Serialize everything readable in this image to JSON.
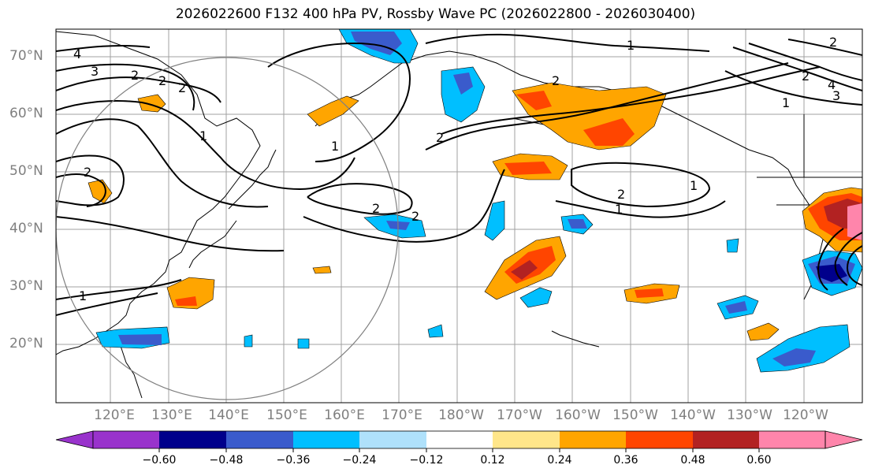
{
  "title": "2026022600 F132 400 hPa PV, Rossby Wave PC (2026022800 - 2026030400)",
  "lat_labels": [
    "70°N",
    "60°N",
    "50°N",
    "40°N",
    "30°N",
    "20°N"
  ],
  "lon_labels": [
    "120°E",
    "130°E",
    "140°E",
    "150°E",
    "160°E",
    "170°E",
    "180°W",
    "170°W",
    "160°W",
    "150°W",
    "140°W",
    "130°W",
    "120°W"
  ],
  "colorbar": {
    "ticks": [
      "−0.60",
      "−0.48",
      "−0.36",
      "−0.24",
      "−0.12",
      "0.12",
      "0.24",
      "0.36",
      "0.48",
      "0.60"
    ],
    "colors": [
      "#9933cc",
      "#00008b",
      "#3a5bcc",
      "#00bfff",
      "#afe1fb",
      "#ffffff",
      "#ffe68a",
      "#ffa500",
      "#ff4500",
      "#b22222",
      "#ff85ab"
    ]
  },
  "contour_labels": [
    "4",
    "3",
    "2",
    "2",
    "2",
    "2",
    "1",
    "1",
    "2",
    "2",
    "2",
    "2",
    "1",
    "2",
    "1",
    "1",
    "1",
    "2",
    "2",
    "4",
    "3",
    "1"
  ]
}
